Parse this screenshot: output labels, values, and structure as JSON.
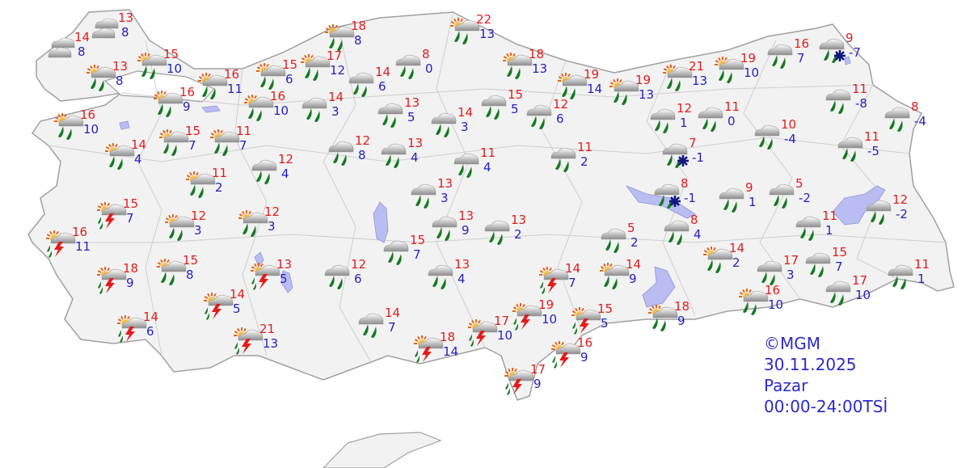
{
  "colors": {
    "max_temp": "#e21c1c",
    "min_temp": "#2222c4",
    "land": "#f2f2f2",
    "border": "#a8a8a8",
    "water": "#b9bdf2",
    "legend_text": "#2a2acc"
  },
  "legend": {
    "copyright": "©MGM",
    "date": "30.11.2025",
    "day": "Pazar",
    "period": "00:00-24:00TSİ"
  },
  "stations": [
    {
      "max": "13",
      "min": "8",
      "icon": "cloudy"
    },
    {
      "max": "14",
      "min": "8",
      "icon": "cloudy"
    },
    {
      "max": "13",
      "min": "8",
      "icon": "partly-cloudy-rain"
    },
    {
      "max": "15",
      "min": "10",
      "icon": "partly-cloudy-rain"
    },
    {
      "max": "16",
      "min": "11",
      "icon": "partly-cloudy-rain"
    },
    {
      "max": "15",
      "min": "6",
      "icon": "partly-cloudy-rain"
    },
    {
      "max": "17",
      "min": "12",
      "icon": "partly-cloudy-rain"
    },
    {
      "max": "18",
      "min": "8",
      "icon": "partly-cloudy-rain"
    },
    {
      "max": "14",
      "min": "6",
      "icon": "rain"
    },
    {
      "max": "8",
      "min": "0",
      "icon": "rain"
    },
    {
      "max": "22",
      "min": "13",
      "icon": "partly-cloudy-rain"
    },
    {
      "max": "18",
      "min": "13",
      "icon": "partly-cloudy-rain"
    },
    {
      "max": "19",
      "min": "14",
      "icon": "partly-cloudy-rain"
    },
    {
      "max": "19",
      "min": "13",
      "icon": "partly-cloudy-rain"
    },
    {
      "max": "21",
      "min": "13",
      "icon": "partly-cloudy-rain"
    },
    {
      "max": "19",
      "min": "10",
      "icon": "partly-cloudy-rain"
    },
    {
      "max": "16",
      "min": "7",
      "icon": "rain"
    },
    {
      "max": "9",
      "min": "-7",
      "icon": "rain-snow"
    },
    {
      "max": "11",
      "min": "-8",
      "icon": "rain"
    },
    {
      "max": "8",
      "min": "-4",
      "icon": "rain"
    },
    {
      "max": "10",
      "min": "-4",
      "icon": "rain"
    },
    {
      "max": "11",
      "min": "-5",
      "icon": "rain"
    },
    {
      "max": "11",
      "min": "0",
      "icon": "rain"
    },
    {
      "max": "12",
      "min": "1",
      "icon": "rain"
    },
    {
      "max": "7",
      "min": "-1",
      "icon": "rain-snow"
    },
    {
      "max": "8",
      "min": "-1",
      "icon": "rain-snow"
    },
    {
      "max": "9",
      "min": "1",
      "icon": "rain"
    },
    {
      "max": "5",
      "min": "-2",
      "icon": "rain"
    },
    {
      "max": "12",
      "min": "-2",
      "icon": "rain"
    },
    {
      "max": "11",
      "min": "1",
      "icon": "rain"
    },
    {
      "max": "8",
      "min": "4",
      "icon": "rain"
    },
    {
      "max": "5",
      "min": "2",
      "icon": "rain"
    },
    {
      "max": "14",
      "min": "2",
      "icon": "partly-cloudy-rain"
    },
    {
      "max": "17",
      "min": "3",
      "icon": "rain"
    },
    {
      "max": "15",
      "min": "7",
      "icon": "rain"
    },
    {
      "max": "11",
      "min": "1",
      "icon": "rain"
    },
    {
      "max": "17",
      "min": "10",
      "icon": "rain"
    },
    {
      "max": "16",
      "min": "10",
      "icon": "partly-cloudy-rain"
    },
    {
      "max": "14",
      "min": "9",
      "icon": "partly-cloudy-rain"
    },
    {
      "max": "18",
      "min": "9",
      "icon": "partly-cloudy-rain"
    },
    {
      "max": "14",
      "min": "7",
      "icon": "thunderstorm"
    },
    {
      "max": "15",
      "min": "5",
      "icon": "thunderstorm"
    },
    {
      "max": "19",
      "min": "10",
      "icon": "thunderstorm"
    },
    {
      "max": "17",
      "min": "10",
      "icon": "thunderstorm"
    },
    {
      "max": "18",
      "min": "14",
      "icon": "thunderstorm"
    },
    {
      "max": "16",
      "min": "9",
      "icon": "thunderstorm"
    },
    {
      "max": "17",
      "min": "9",
      "icon": "thunderstorm"
    },
    {
      "max": "14",
      "min": "7",
      "icon": "rain"
    },
    {
      "max": "12",
      "min": "6",
      "icon": "rain"
    },
    {
      "max": "13",
      "min": "4",
      "icon": "rain"
    },
    {
      "max": "15",
      "min": "7",
      "icon": "rain"
    },
    {
      "max": "13",
      "min": "9",
      "icon": "rain"
    },
    {
      "max": "13",
      "min": "2",
      "icon": "rain"
    },
    {
      "max": "13",
      "min": "3",
      "icon": "rain"
    },
    {
      "max": "13",
      "min": "4",
      "icon": "rain"
    },
    {
      "max": "12",
      "min": "8",
      "icon": "rain"
    },
    {
      "max": "11",
      "min": "4",
      "icon": "rain"
    },
    {
      "max": "11",
      "min": "2",
      "icon": "rain"
    },
    {
      "max": "12",
      "min": "6",
      "icon": "rain"
    },
    {
      "max": "15",
      "min": "5",
      "icon": "rain"
    },
    {
      "max": "14",
      "min": "3",
      "icon": "rain"
    },
    {
      "max": "13",
      "min": "5",
      "icon": "rain"
    },
    {
      "max": "14",
      "min": "3",
      "icon": "rain"
    },
    {
      "max": "16",
      "min": "10",
      "icon": "partly-cloudy-rain"
    },
    {
      "max": "16",
      "min": "9",
      "icon": "partly-cloudy-rain"
    },
    {
      "max": "15",
      "min": "7",
      "icon": "partly-cloudy-rain"
    },
    {
      "max": "11",
      "min": "7",
      "icon": "partly-cloudy-rain"
    },
    {
      "max": "16",
      "min": "10",
      "icon": "partly-cloudy-rain"
    },
    {
      "max": "14",
      "min": "4",
      "icon": "partly-cloudy-rain"
    },
    {
      "max": "12",
      "min": "4",
      "icon": "rain"
    },
    {
      "max": "11",
      "min": "2",
      "icon": "partly-cloudy-rain"
    },
    {
      "max": "15",
      "min": "7",
      "icon": "thunderstorm"
    },
    {
      "max": "16",
      "min": "11",
      "icon": "thunderstorm"
    },
    {
      "max": "12",
      "min": "3",
      "icon": "partly-cloudy-rain"
    },
    {
      "max": "12",
      "min": "3",
      "icon": "partly-cloudy-rain"
    },
    {
      "max": "18",
      "min": "9",
      "icon": "thunderstorm"
    },
    {
      "max": "15",
      "min": "8",
      "icon": "partly-cloudy-rain"
    },
    {
      "max": "13",
      "min": "5",
      "icon": "thunderstorm"
    },
    {
      "max": "14",
      "min": "5",
      "icon": "thunderstorm"
    },
    {
      "max": "14",
      "min": "6",
      "icon": "thunderstorm"
    },
    {
      "max": "21",
      "min": "13",
      "icon": "thunderstorm"
    }
  ]
}
